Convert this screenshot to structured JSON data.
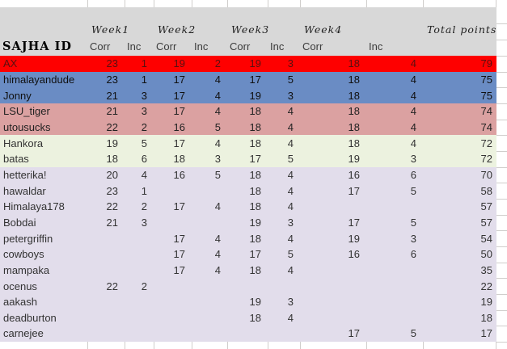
{
  "header": {
    "id_label": "SAJHA ID",
    "weeks": [
      "Week1",
      "Week2",
      "Week3",
      "Week4"
    ],
    "total_label": "Total points",
    "corr": "Corr",
    "inc": "Inc"
  },
  "palette": {
    "red": "#fe0000",
    "blue": "#6a8cc4",
    "pink": "#dba1a1",
    "green": "#ecf2df",
    "lavender": "#e2ddeb",
    "header_grey": "#d8d8d8",
    "gridline": "#d0cecc",
    "text": "#2b2b2b",
    "red_text": "#5a1010"
  },
  "rows": [
    {
      "name": "AX",
      "band": "red",
      "cells": [
        "23",
        "1",
        "19",
        "2",
        "19",
        "3",
        "18",
        "4"
      ],
      "total": "79"
    },
    {
      "name": "himalayandude",
      "band": "blue",
      "cells": [
        "23",
        "1",
        "17",
        "4",
        "17",
        "5",
        "18",
        "4"
      ],
      "total": "75"
    },
    {
      "name": "Jonny",
      "band": "blue",
      "cells": [
        "21",
        "3",
        "17",
        "4",
        "19",
        "3",
        "18",
        "4"
      ],
      "total": "75"
    },
    {
      "name": "LSU_tiger",
      "band": "pink",
      "cells": [
        "21",
        "3",
        "17",
        "4",
        "18",
        "4",
        "18",
        "4"
      ],
      "total": "74"
    },
    {
      "name": "utousucks",
      "band": "pink",
      "cells": [
        "22",
        "2",
        "16",
        "5",
        "18",
        "4",
        "18",
        "4"
      ],
      "total": "74"
    },
    {
      "name": "Hankora",
      "band": "green",
      "cells": [
        "19",
        "5",
        "17",
        "4",
        "18",
        "4",
        "18",
        "4"
      ],
      "total": "72"
    },
    {
      "name": "batas",
      "band": "green",
      "cells": [
        "18",
        "6",
        "18",
        "3",
        "17",
        "5",
        "19",
        "3"
      ],
      "total": "72"
    },
    {
      "name": "hetterika!",
      "band": "lavender",
      "cells": [
        "20",
        "4",
        "16",
        "5",
        "18",
        "4",
        "16",
        "6"
      ],
      "total": "70"
    },
    {
      "name": "hawaldar",
      "band": "lavender",
      "cells": [
        "23",
        "1",
        "",
        "",
        "18",
        "4",
        "17",
        "5"
      ],
      "total": "58"
    },
    {
      "name": "Himalaya178",
      "band": "lavender",
      "cells": [
        "22",
        "2",
        "17",
        "4",
        "18",
        "4",
        "",
        ""
      ],
      "total": "57"
    },
    {
      "name": "Bobdai",
      "band": "lavender",
      "cells": [
        "21",
        "3",
        "",
        "",
        "19",
        "3",
        "17",
        "5"
      ],
      "total": "57"
    },
    {
      "name": "petergriffin",
      "band": "lavender",
      "cells": [
        "",
        "",
        "17",
        "4",
        "18",
        "4",
        "19",
        "3"
      ],
      "total": "54"
    },
    {
      "name": "cowboys",
      "band": "lavender",
      "cells": [
        "",
        "",
        "17",
        "4",
        "17",
        "5",
        "16",
        "6"
      ],
      "total": "50"
    },
    {
      "name": "mampaka",
      "band": "lavender",
      "cells": [
        "",
        "",
        "17",
        "4",
        "18",
        "4",
        "",
        ""
      ],
      "total": "35"
    },
    {
      "name": "ocenus",
      "band": "lavender",
      "cells": [
        "22",
        "2",
        "",
        "",
        "",
        "",
        "",
        ""
      ],
      "total": "22"
    },
    {
      "name": "aakash",
      "band": "lavender",
      "cells": [
        "",
        "",
        "",
        "",
        "19",
        "3",
        "",
        ""
      ],
      "total": "19"
    },
    {
      "name": "deadburton",
      "band": "lavender",
      "cells": [
        "",
        "",
        "",
        "",
        "18",
        "4",
        "",
        ""
      ],
      "total": "18"
    },
    {
      "name": "carnejee",
      "band": "lavender",
      "cells": [
        "",
        "",
        "",
        "",
        "",
        "",
        "17",
        "5"
      ],
      "total": "17"
    }
  ]
}
